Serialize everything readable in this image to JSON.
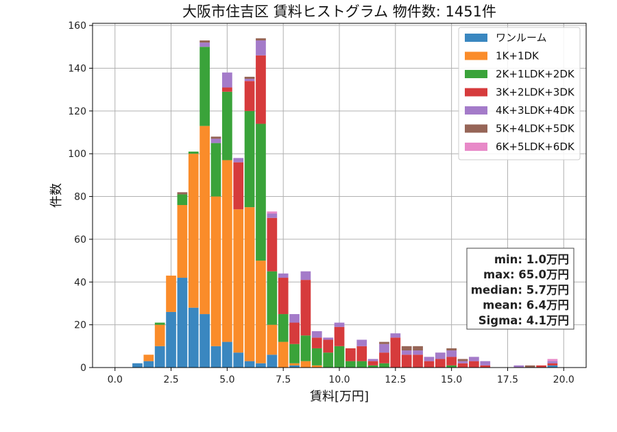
{
  "chart_data": {
    "type": "bar",
    "stacked": true,
    "title": "大阪市住吉区 賃料ヒストグラム 物件数: 1451件",
    "xlabel": "賃料[万円]",
    "ylabel": "件数",
    "xlim": [
      -1.0,
      21.0
    ],
    "ylim": [
      0,
      161
    ],
    "xticks": [
      0,
      2.5,
      5,
      7.5,
      10,
      12.5,
      15,
      17.5,
      20
    ],
    "xtick_labels": [
      "0.0",
      "2.5",
      "5.0",
      "7.5",
      "10.0",
      "12.5",
      "15.0",
      "17.5",
      "20.0"
    ],
    "yticks": [
      0,
      20,
      40,
      60,
      80,
      100,
      120,
      140,
      160
    ],
    "ytick_labels": [
      "0",
      "20",
      "40",
      "60",
      "80",
      "100",
      "120",
      "140",
      "160"
    ],
    "grid": true,
    "legend_position": "top-right",
    "bin_width": 0.5,
    "bin_centers": [
      1,
      1.5,
      2,
      2.5,
      3,
      3.5,
      4,
      4.5,
      5,
      5.5,
      6,
      6.5,
      7,
      7.5,
      8,
      8.5,
      9,
      9.5,
      10,
      10.5,
      11,
      11.5,
      12,
      12.5,
      13,
      13.5,
      14,
      14.5,
      15,
      15.5,
      16,
      16.5,
      17,
      17.5,
      18,
      18.5,
      19,
      19.5
    ],
    "series": [
      {
        "name": "ワンルーム",
        "color": "#3a87c0",
        "values": [
          2,
          3,
          10,
          26,
          42,
          28,
          25,
          10,
          12,
          7,
          3,
          2,
          6,
          0,
          1,
          0,
          0,
          0,
          0,
          0,
          0,
          0,
          0,
          0,
          0,
          0,
          0,
          0,
          0,
          0,
          0,
          0,
          0,
          0,
          0,
          0,
          0,
          1
        ]
      },
      {
        "name": "1K+1DK",
        "color": "#fa8c2a",
        "values": [
          0,
          3,
          10,
          17,
          34,
          72,
          88,
          70,
          85,
          67,
          72,
          48,
          14,
          12,
          1,
          3,
          1,
          0,
          0,
          0,
          0,
          0,
          0,
          0,
          0,
          0,
          0,
          0,
          0,
          0,
          0,
          0,
          0,
          0,
          0,
          0,
          0,
          0
        ]
      },
      {
        "name": "2K+1LDK+2DK",
        "color": "#3aa33a",
        "values": [
          0,
          0,
          1,
          0,
          5,
          1,
          37,
          25,
          32,
          0,
          45,
          64,
          25,
          13,
          9,
          12,
          8,
          7,
          10,
          3,
          3,
          1,
          2,
          0,
          0,
          0,
          0,
          0,
          1,
          0,
          0,
          0,
          0,
          0,
          0,
          0,
          0,
          0
        ]
      },
      {
        "name": "3K+2LDK+3DK",
        "color": "#d63b3c",
        "values": [
          0,
          0,
          0,
          0,
          0,
          0,
          0,
          0,
          2,
          22,
          14,
          32,
          25,
          17,
          10,
          26,
          5,
          6,
          9,
          6,
          7,
          2,
          5,
          14,
          6,
          6,
          3,
          4,
          4,
          2,
          3,
          1,
          0,
          0,
          0,
          0,
          1,
          1
        ]
      },
      {
        "name": "4K+3LDK+4DK",
        "color": "#a47bc9",
        "values": [
          0,
          0,
          0,
          0,
          0,
          0,
          2,
          2,
          7,
          2,
          1,
          7,
          2,
          2,
          4,
          4,
          3,
          1,
          2,
          0,
          3,
          1,
          4,
          2,
          2,
          2,
          2,
          3,
          3,
          1,
          2,
          2,
          0,
          0,
          1,
          0,
          0,
          1
        ]
      },
      {
        "name": "5K+4LDK+5DK",
        "color": "#966557",
        "values": [
          0,
          0,
          0,
          0,
          1,
          0,
          1,
          1,
          0,
          0,
          1,
          1,
          0,
          0,
          0,
          0,
          0,
          0,
          0,
          0,
          0,
          0,
          1,
          0,
          2,
          2,
          0,
          0,
          1,
          1,
          0,
          0,
          0,
          0,
          0,
          1,
          0,
          0
        ]
      },
      {
        "name": "6K+5LDK+6DK",
        "color": "#e889c8",
        "values": [
          0,
          0,
          0,
          0,
          0,
          0,
          0,
          0,
          0,
          0,
          0,
          0,
          1,
          0,
          0,
          0,
          0,
          0,
          0,
          0,
          0,
          0,
          0,
          0,
          0,
          0,
          0,
          0,
          0,
          0,
          0,
          0,
          0,
          0,
          0,
          0,
          0,
          1
        ]
      }
    ],
    "stats_box": {
      "lines": [
        "min: 1.0万円",
        "max: 65.0万円",
        "median: 5.7万円",
        "mean: 6.4万円",
        "Sigma: 4.1万円"
      ]
    }
  }
}
